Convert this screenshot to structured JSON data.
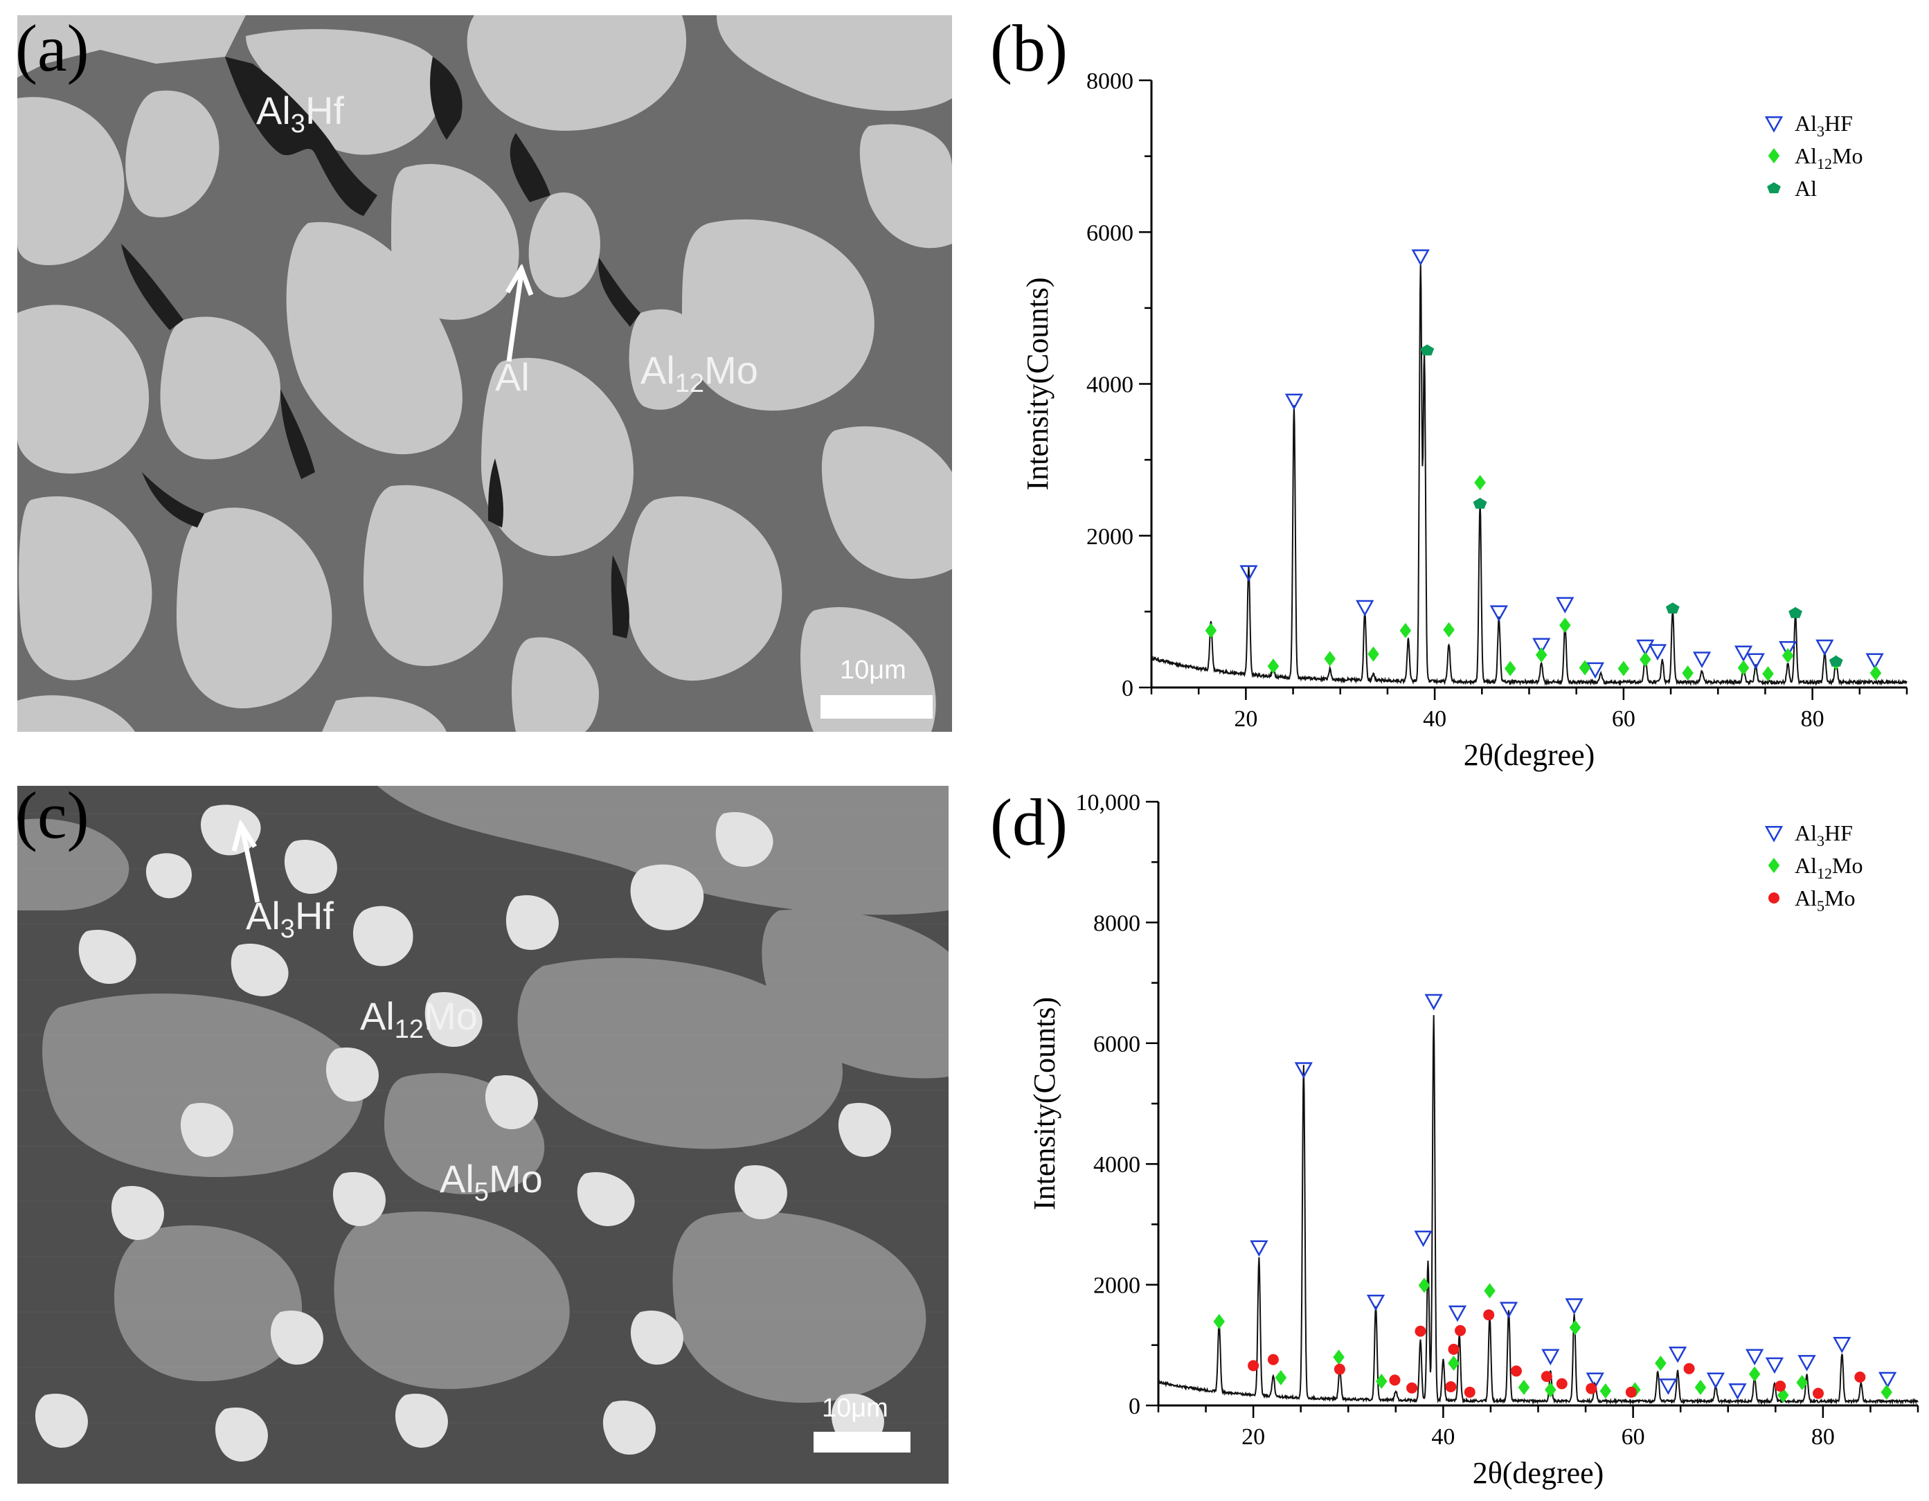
{
  "panels": {
    "a": {
      "label": "(a)",
      "phases": [
        "Al3Hf",
        "Al",
        "Al12Mo"
      ],
      "scale": "10μm"
    },
    "b": {
      "label": "(b)"
    },
    "c": {
      "label": "(c)",
      "phases": [
        "Al3Hf",
        "Al12Mo",
        "Al5Mo"
      ],
      "scale": "10μm"
    },
    "d": {
      "label": "(d)"
    }
  },
  "sem_a": {
    "al3hf": {
      "main": "Al",
      "sub": "3",
      "tail": "Hf"
    },
    "al": {
      "main": "Al"
    },
    "al12mo": {
      "main": "Al",
      "sub": "12",
      "tail": "Mo"
    },
    "scale": "10μm"
  },
  "sem_c": {
    "al3hf": {
      "main": "Al",
      "sub": "3",
      "tail": "Hf"
    },
    "al12mo": {
      "main": "Al",
      "sub": "12",
      "tail": "Mo"
    },
    "al5mo": {
      "main": "Al",
      "sub": "5",
      "tail": "Mo"
    },
    "scale": "10μm"
  },
  "chart_data": [
    {
      "type": "line",
      "panel": "b",
      "xlabel": "2θ(degree)",
      "ylabel": "Intensity(Counts)",
      "xlim": [
        10,
        90
      ],
      "ylim": [
        0,
        8000
      ],
      "xticks": [
        20,
        40,
        60,
        80
      ],
      "yticks": [
        0,
        2000,
        4000,
        6000,
        8000
      ],
      "ytick_labels": [
        "0",
        "2000",
        "4000",
        "6000",
        "8000"
      ],
      "peaks": [
        [
          16.3,
          650
        ],
        [
          20.3,
          1420
        ],
        [
          22.9,
          120
        ],
        [
          25.1,
          3600
        ],
        [
          28.9,
          130
        ],
        [
          32.6,
          900
        ],
        [
          33.5,
          100
        ],
        [
          37.2,
          550
        ],
        [
          38.5,
          5500
        ],
        [
          38.9,
          4300
        ],
        [
          41.5,
          500
        ],
        [
          44.8,
          2350
        ],
        [
          46.8,
          850
        ],
        [
          51.3,
          260
        ],
        [
          53.8,
          750
        ],
        [
          57.6,
          120
        ],
        [
          62.3,
          350
        ],
        [
          64.1,
          300
        ],
        [
          65.2,
          960
        ],
        [
          68.3,
          150
        ],
        [
          72.7,
          200
        ],
        [
          74.0,
          230
        ],
        [
          77.4,
          250
        ],
        [
          78.2,
          900
        ],
        [
          81.3,
          400
        ],
        [
          82.5,
          300
        ]
      ],
      "legend": [
        {
          "label": "Al3HF",
          "marker": "triangle-open",
          "color": "#1f3fd6"
        },
        {
          "label": "Al12Mo",
          "marker": "diamond",
          "color": "#22e022"
        },
        {
          "label": "Al",
          "marker": "pentagon",
          "color": "#0a9a5a"
        }
      ],
      "markers": {
        "Al3HF": [
          [
            20.3,
            1520
          ],
          [
            25.1,
            3780
          ],
          [
            32.6,
            1060
          ],
          [
            38.5,
            5680
          ],
          [
            46.8,
            990
          ],
          [
            51.3,
            560
          ],
          [
            53.8,
            1100
          ],
          [
            57.0,
            240
          ],
          [
            62.3,
            540
          ],
          [
            63.6,
            480
          ],
          [
            68.3,
            380
          ],
          [
            72.7,
            460
          ],
          [
            74.0,
            360
          ],
          [
            77.4,
            520
          ],
          [
            81.3,
            540
          ],
          [
            86.6,
            360
          ]
        ],
        "Al12Mo": [
          [
            16.3,
            750
          ],
          [
            22.9,
            280
          ],
          [
            28.9,
            380
          ],
          [
            33.5,
            440
          ],
          [
            36.9,
            750
          ],
          [
            41.5,
            760
          ],
          [
            44.8,
            2700
          ],
          [
            48.0,
            250
          ],
          [
            51.3,
            430
          ],
          [
            53.8,
            820
          ],
          [
            55.9,
            260
          ],
          [
            60.0,
            250
          ],
          [
            62.3,
            370
          ],
          [
            66.8,
            190
          ],
          [
            72.7,
            260
          ],
          [
            75.3,
            180
          ],
          [
            77.4,
            420
          ],
          [
            82.5,
            330
          ],
          [
            86.7,
            190
          ]
        ],
        "Al": [
          [
            39.2,
            4440
          ],
          [
            44.8,
            2420
          ],
          [
            65.2,
            1040
          ],
          [
            78.2,
            980
          ],
          [
            82.5,
            340
          ]
        ]
      }
    },
    {
      "type": "line",
      "panel": "d",
      "xlabel": "2θ(degree)",
      "ylabel": "Intensity(Counts)",
      "xlim": [
        10,
        90
      ],
      "ylim": [
        0,
        10000
      ],
      "xticks": [
        20,
        40,
        60,
        80
      ],
      "yticks": [
        0,
        2000,
        4000,
        6000,
        8000,
        10000
      ],
      "ytick_labels": [
        "0",
        "2000",
        "4000",
        "6000",
        "8000",
        "10,000"
      ],
      "peaks": [
        [
          16.4,
          1150
        ],
        [
          20.6,
          2280
        ],
        [
          22.1,
          350
        ],
        [
          25.3,
          5500
        ],
        [
          29.1,
          500
        ],
        [
          32.9,
          1550
        ],
        [
          35.0,
          150
        ],
        [
          37.6,
          1000
        ],
        [
          38.4,
          2300
        ],
        [
          39.0,
          6400
        ],
        [
          40.0,
          700
        ],
        [
          41.7,
          1100
        ],
        [
          44.9,
          1400
        ],
        [
          46.9,
          1500
        ],
        [
          51.3,
          500
        ],
        [
          53.8,
          1450
        ],
        [
          56.0,
          300
        ],
        [
          62.6,
          500
        ],
        [
          64.7,
          500
        ],
        [
          68.7,
          250
        ],
        [
          72.8,
          400
        ],
        [
          74.9,
          300
        ],
        [
          78.3,
          450
        ],
        [
          82.0,
          800
        ],
        [
          84.0,
          300
        ]
      ],
      "legend": [
        {
          "label": "Al3HF",
          "marker": "triangle-open",
          "color": "#1f3fd6"
        },
        {
          "label": "Al12Mo",
          "marker": "diamond",
          "color": "#22e022"
        },
        {
          "label": "Al5Mo",
          "marker": "circle",
          "color": "#ee1c1c"
        }
      ],
      "markers": {
        "Al3HF": [
          [
            20.6,
            2620
          ],
          [
            25.3,
            5570
          ],
          [
            32.9,
            1720
          ],
          [
            37.9,
            2780
          ],
          [
            39.0,
            6700
          ],
          [
            41.5,
            1540
          ],
          [
            46.9,
            1600
          ],
          [
            51.3,
            820
          ],
          [
            53.8,
            1660
          ],
          [
            56.0,
            430
          ],
          [
            63.7,
            330
          ],
          [
            64.7,
            860
          ],
          [
            68.7,
            430
          ],
          [
            71.0,
            250
          ],
          [
            72.8,
            820
          ],
          [
            74.9,
            680
          ],
          [
            78.3,
            720
          ],
          [
            82.0,
            1020
          ],
          [
            86.8,
            440
          ]
        ],
        "Al12Mo": [
          [
            16.4,
            1390
          ],
          [
            22.9,
            460
          ],
          [
            29.0,
            800
          ],
          [
            33.5,
            400
          ],
          [
            38.0,
            1990
          ],
          [
            41.1,
            700
          ],
          [
            44.9,
            1900
          ],
          [
            48.5,
            300
          ],
          [
            51.3,
            260
          ],
          [
            53.9,
            1290
          ],
          [
            57.1,
            240
          ],
          [
            60.2,
            260
          ],
          [
            62.9,
            700
          ],
          [
            67.1,
            300
          ],
          [
            72.8,
            520
          ],
          [
            75.8,
            170
          ],
          [
            77.8,
            380
          ],
          [
            86.7,
            220
          ]
        ],
        "Al5Mo": [
          [
            20.0,
            660
          ],
          [
            22.1,
            760
          ],
          [
            29.1,
            600
          ],
          [
            34.9,
            420
          ],
          [
            36.7,
            290
          ],
          [
            37.6,
            1230
          ],
          [
            40.8,
            310
          ],
          [
            41.1,
            930
          ],
          [
            41.8,
            1240
          ],
          [
            42.8,
            220
          ],
          [
            44.8,
            1500
          ],
          [
            47.7,
            570
          ],
          [
            50.9,
            480
          ],
          [
            52.5,
            360
          ],
          [
            55.6,
            280
          ],
          [
            59.8,
            220
          ],
          [
            65.9,
            610
          ],
          [
            75.5,
            320
          ],
          [
            79.5,
            200
          ],
          [
            83.9,
            470
          ]
        ]
      }
    }
  ]
}
